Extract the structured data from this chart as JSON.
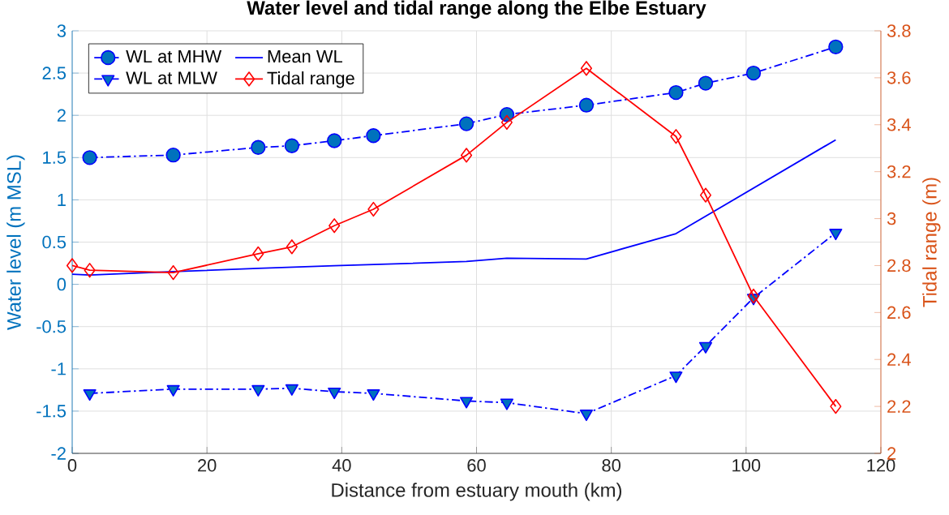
{
  "chart_data": {
    "type": "line",
    "title": "Water level and tidal range along the Elbe  Estuary",
    "xlabel": "Distance from estuary mouth (km)",
    "ylabel": "Water level (m MSL)",
    "y2label": "Tidal range (m)",
    "series": [
      {
        "name": "WL at MHW",
        "color": "#0000ff",
        "marker": "circle",
        "line_style": "dashdot",
        "x": [
          2.6,
          15.0,
          27.6,
          32.6,
          38.9,
          44.7,
          58.5,
          64.5,
          76.3,
          89.6,
          94.0,
          101.1,
          113.3
        ],
        "values": [
          1.5,
          1.53,
          1.62,
          1.64,
          1.7,
          1.76,
          1.9,
          2.01,
          2.12,
          2.27,
          2.38,
          2.5,
          2.81
        ]
      },
      {
        "name": "WL at MLW",
        "color": "#0000ff",
        "marker": "triangle-down",
        "line_style": "dashdot",
        "x": [
          2.6,
          15.0,
          27.6,
          32.6,
          38.9,
          44.7,
          58.5,
          64.5,
          76.3,
          89.6,
          94.0,
          101.1,
          113.3
        ],
        "values": [
          -1.29,
          -1.24,
          -1.24,
          -1.23,
          -1.27,
          -1.29,
          -1.38,
          -1.4,
          -1.53,
          -1.08,
          -0.73,
          -0.16,
          0.61
        ]
      },
      {
        "name": "Mean WL",
        "color": "#0000ff",
        "marker": "none",
        "line_style": "solid",
        "x": [
          0,
          2.6,
          15.0,
          27.6,
          38.9,
          58.5,
          64.5,
          76.3,
          89.6,
          113.3
        ],
        "values": [
          0.12,
          0.11,
          0.15,
          0.19,
          0.22,
          0.27,
          0.31,
          0.3,
          0.6,
          1.71
        ]
      },
      {
        "name": "Tidal range",
        "color": "#ff0000",
        "marker": "diamond",
        "line_style": "solid",
        "axis": "y2",
        "x": [
          0,
          2.6,
          15.0,
          27.6,
          32.6,
          38.9,
          44.7,
          58.5,
          64.5,
          76.3,
          89.6,
          94.0,
          101.1,
          113.3
        ],
        "values": [
          2.8,
          2.78,
          2.77,
          2.85,
          2.88,
          2.97,
          3.04,
          3.27,
          3.41,
          3.64,
          3.35,
          3.1,
          2.67,
          2.2
        ]
      }
    ],
    "xlim": [
      0,
      120
    ],
    "xticks": [
      0,
      20,
      40,
      60,
      80,
      100,
      120
    ],
    "ylim": [
      -2,
      3
    ],
    "yticks": [
      -2,
      -1.5,
      -1,
      -0.5,
      0,
      0.5,
      1,
      1.5,
      2,
      2.5,
      3
    ],
    "y2lim": [
      2,
      3.8
    ],
    "y2ticks": [
      2,
      2.2,
      2.4,
      2.6,
      2.8,
      3,
      3.2,
      3.4,
      3.6,
      3.8
    ],
    "grid": true,
    "legend": "top left"
  }
}
